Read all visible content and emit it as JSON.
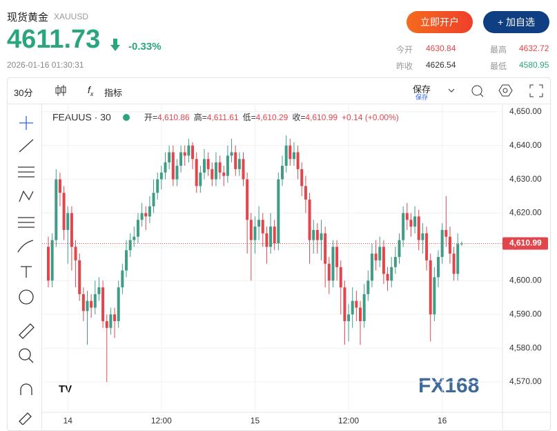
{
  "header": {
    "title": "现货黄金",
    "symbol": "XAUUSD",
    "price": "4611.73",
    "change": "-0.33%",
    "time": "2026-01-16 01:30:31",
    "open_account": "立即开户",
    "add_watch": "+ 加自选",
    "stats": [
      {
        "label": "今开",
        "value": "4630.84"
      },
      {
        "label": "最高",
        "value": "4632.72"
      },
      {
        "label": "昨收",
        "value": "4626.54"
      },
      {
        "label": "最低",
        "value": "4580.95"
      }
    ]
  },
  "toolbar": {
    "interval": "30分",
    "indicators": "指标",
    "save": "保存",
    "save_sub": "保存"
  },
  "chart_data": {
    "type": "candlestick",
    "title": "FEAUUS · 30",
    "ohlc_legend": [
      {
        "label": "开=",
        "value": "4,610.86"
      },
      {
        "label": "高=",
        "value": "4,611.61"
      },
      {
        "label": "低=",
        "value": "4,610.29"
      },
      {
        "label": "收=",
        "value": "4,610.99"
      },
      {
        "label": "",
        "value": "+0.14 (+0.00%)"
      }
    ],
    "watermark": "FX168",
    "up_color": "#3f9c86",
    "down_color": "#e0464c",
    "open": [
      4610,
      4600,
      4612,
      4630,
      4626,
      4615,
      4620,
      4610,
      4606,
      4596,
      4591,
      4594,
      4592,
      4596,
      4598,
      4588,
      4586,
      4590,
      4588,
      4598,
      4603,
      4609,
      4612,
      4613,
      4618,
      4620,
      4619,
      4622,
      4626,
      4630,
      4632,
      4635,
      4638,
      4630,
      4634,
      4638,
      4637,
      4640,
      4636,
      4628,
      4632,
      4636,
      4633,
      4630,
      4635,
      4632,
      4631,
      4637,
      4638,
      4633,
      4636,
      4630,
      4618,
      4612,
      4616,
      4618,
      4614,
      4610,
      4616,
      4611,
      4630,
      4634,
      4640,
      4636,
      4638,
      4633,
      4628,
      4624,
      4612,
      4615,
      4612,
      4614,
      4605,
      4600,
      4610,
      4604,
      4598,
      4588,
      4590,
      4594,
      4592,
      4588,
      4596,
      4600,
      4608,
      4606,
      4610,
      4602,
      4600,
      4604,
      4607,
      4612,
      4620,
      4618,
      4616,
      4619,
      4612,
      4614,
      4606,
      4590,
      4601,
      4607,
      4615,
      4613,
      4608,
      4602,
      4610.86
    ],
    "high": [
      4613,
      4614,
      4633,
      4632,
      4628,
      4622,
      4622,
      4612,
      4608,
      4598,
      4597,
      4596,
      4600,
      4601,
      4600,
      4590,
      4592,
      4592,
      4600,
      4605,
      4612,
      4614,
      4616,
      4620,
      4623,
      4622,
      4625,
      4630,
      4632,
      4634,
      4638,
      4640,
      4640,
      4636,
      4640,
      4640,
      4642,
      4641,
      4638,
      4634,
      4639,
      4638,
      4635,
      4638,
      4637,
      4634,
      4640,
      4642,
      4640,
      4638,
      4638,
      4632,
      4620,
      4619,
      4622,
      4620,
      4616,
      4620,
      4618,
      4632,
      4637,
      4643,
      4642,
      4641,
      4640,
      4635,
      4631,
      4626,
      4618,
      4617,
      4618,
      4616,
      4607,
      4612,
      4612,
      4606,
      4600,
      4593,
      4598,
      4597,
      4594,
      4599,
      4603,
      4611,
      4612,
      4613,
      4612,
      4604,
      4607,
      4610,
      4614,
      4622,
      4623,
      4620,
      4622,
      4621,
      4617,
      4616,
      4608,
      4604,
      4609,
      4617,
      4625,
      4616,
      4610,
      4614,
      4611.61
    ],
    "low": [
      4598,
      4598,
      4610,
      4622,
      4612,
      4605,
      4603,
      4598,
      4594,
      4588,
      4581,
      4589,
      4590,
      4594,
      4586,
      4570,
      4584,
      4583,
      4586,
      4596,
      4601,
      4607,
      4610,
      4611,
      4616,
      4615,
      4617,
      4620,
      4624,
      4627,
      4630,
      4633,
      4628,
      4628,
      4632,
      4634,
      4635,
      4633,
      4626,
      4626,
      4630,
      4631,
      4628,
      4628,
      4630,
      4628,
      4629,
      4635,
      4631,
      4631,
      4628,
      4608,
      4600,
      4608,
      4612,
      4610,
      4605,
      4608,
      4609,
      4609,
      4628,
      4632,
      4634,
      4634,
      4630,
      4625,
      4620,
      4605,
      4608,
      4608,
      4606,
      4598,
      4596,
      4598,
      4600,
      4590,
      4581,
      4582,
      4586,
      4588,
      4581,
      4586,
      4594,
      4598,
      4603,
      4604,
      4599,
      4597,
      4598,
      4602,
      4605,
      4610,
      4615,
      4613,
      4614,
      4609,
      4608,
      4603,
      4582,
      4588,
      4598,
      4605,
      4610,
      4605,
      4600,
      4600,
      4610.29
    ],
    "close": [
      4600,
      4612,
      4630,
      4626,
      4615,
      4620,
      4610,
      4606,
      4596,
      4591,
      4594,
      4592,
      4596,
      4598,
      4588,
      4586,
      4590,
      4588,
      4598,
      4603,
      4609,
      4612,
      4613,
      4618,
      4620,
      4619,
      4622,
      4626,
      4630,
      4632,
      4635,
      4638,
      4630,
      4634,
      4638,
      4637,
      4640,
      4636,
      4628,
      4632,
      4636,
      4633,
      4630,
      4635,
      4632,
      4631,
      4637,
      4638,
      4633,
      4636,
      4630,
      4618,
      4612,
      4616,
      4618,
      4614,
      4610,
      4616,
      4611,
      4630,
      4634,
      4640,
      4636,
      4638,
      4633,
      4628,
      4624,
      4612,
      4615,
      4612,
      4614,
      4605,
      4600,
      4610,
      4604,
      4598,
      4588,
      4590,
      4594,
      4592,
      4588,
      4596,
      4600,
      4608,
      4606,
      4610,
      4602,
      4600,
      4604,
      4607,
      4612,
      4620,
      4618,
      4616,
      4619,
      4612,
      4614,
      4606,
      4590,
      4601,
      4607,
      4615,
      4613,
      4608,
      4602,
      4610.86,
      4610.99
    ],
    "xticks": [
      {
        "value": 5,
        "label": "14"
      },
      {
        "value": 29,
        "label": "12:00"
      },
      {
        "value": 53,
        "label": "15"
      },
      {
        "value": 77,
        "label": "12:00"
      },
      {
        "value": 101,
        "label": "16"
      }
    ],
    "ylim": [
      4561,
      4652
    ],
    "yticks": [
      {
        "value": 4570,
        "label": "4,570.00"
      },
      {
        "value": 4580,
        "label": "4,580.00"
      },
      {
        "value": 4590,
        "label": "4,590.00"
      },
      {
        "value": 4600,
        "label": "4,600.00"
      },
      {
        "value": 4610,
        "label": "4,610.00"
      },
      {
        "value": 4620,
        "label": "4,620.00"
      },
      {
        "value": 4630,
        "label": "4,630.00"
      },
      {
        "value": 4640,
        "label": "4,640.00"
      },
      {
        "value": 4650,
        "label": "4,650.00"
      }
    ],
    "last_price": {
      "value": 4610.99,
      "label": "4,610.99"
    },
    "grid": true
  }
}
